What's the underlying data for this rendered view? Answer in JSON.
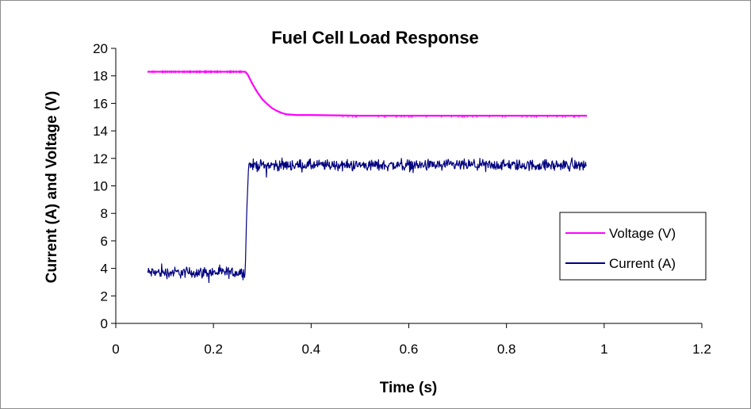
{
  "chart_data": {
    "type": "line",
    "title": "Fuel Cell Load Response",
    "xlabel": "Time (s)",
    "ylabel": "Current (A)  and Voltage (V)",
    "xlim": [
      0,
      1.2
    ],
    "ylim": [
      0,
      20
    ],
    "x_ticks": [
      0,
      0.2,
      0.4,
      0.6,
      0.8,
      1,
      1.2
    ],
    "x_tick_labels": [
      "0",
      "0.2",
      "0.4",
      "0.6",
      "0.8",
      "1",
      "1.2"
    ],
    "y_ticks": [
      0,
      2,
      4,
      6,
      8,
      10,
      12,
      14,
      16,
      18,
      20
    ],
    "y_tick_labels": [
      "0",
      "2",
      "4",
      "6",
      "8",
      "10",
      "12",
      "14",
      "16",
      "18",
      "20"
    ],
    "grid": false,
    "legend_position": "right",
    "series": [
      {
        "name": "Voltage (V)",
        "color": "#ff00ff",
        "x": [
          0.065,
          0.1,
          0.15,
          0.2,
          0.25,
          0.265,
          0.27,
          0.28,
          0.29,
          0.3,
          0.31,
          0.32,
          0.33,
          0.34,
          0.35,
          0.37,
          0.4,
          0.5,
          0.6,
          0.7,
          0.8,
          0.9,
          0.965
        ],
        "y": [
          18.3,
          18.3,
          18.3,
          18.3,
          18.3,
          18.3,
          18.1,
          17.4,
          16.8,
          16.3,
          15.95,
          15.65,
          15.45,
          15.3,
          15.2,
          15.15,
          15.15,
          15.1,
          15.1,
          15.1,
          15.1,
          15.1,
          15.1
        ]
      },
      {
        "name": "Current (A)",
        "color": "#000080",
        "x": [
          0.065,
          0.1,
          0.15,
          0.2,
          0.25,
          0.265,
          0.268,
          0.272,
          0.3,
          0.4,
          0.5,
          0.6,
          0.7,
          0.8,
          0.9,
          0.963
        ],
        "y": [
          3.7,
          3.7,
          3.7,
          3.7,
          3.7,
          3.7,
          8.0,
          11.5,
          11.5,
          11.5,
          11.5,
          11.5,
          11.5,
          11.5,
          11.5,
          11.5
        ],
        "noise_amplitude": 0.6
      }
    ]
  }
}
